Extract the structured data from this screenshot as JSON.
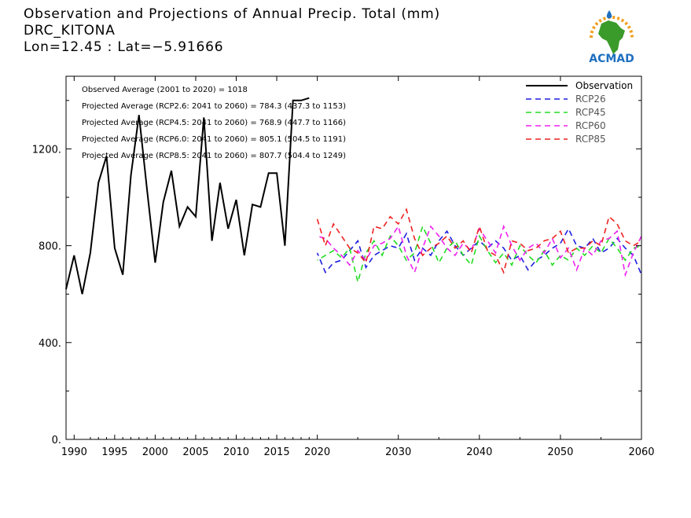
{
  "header": {
    "title": "Observation and Projections of Annual Precip. Total (mm)",
    "station": "DRC_KITONA",
    "coords": "Lon=12.45 : Lat=−5.91666"
  },
  "logo": {
    "text": "ACMAD",
    "colors": {
      "africa": "#3a9a2a",
      "ring": "#f0a020",
      "drop": "#1e6fc0",
      "text": "#1e6fc0"
    }
  },
  "chart_data": {
    "type": "line",
    "title": "Observation and Projections of Annual Precip. Total (mm)",
    "xlabel": "",
    "ylabel": "",
    "xlim": [
      1989,
      2060
    ],
    "ylim": [
      0,
      1500
    ],
    "grid": false,
    "legend_position": "top-right",
    "x_ticks": [
      1990,
      1995,
      2000,
      2005,
      2010,
      2015,
      2020,
      2030,
      2040,
      2050,
      2060
    ],
    "y_ticks": [
      0,
      400,
      800,
      1200
    ],
    "y_tick_labels": [
      "0.",
      "400.",
      "800.",
      "1200."
    ],
    "annotations": [
      "Observed Average (2001 to 2020) = 1018",
      "Projected Average (RCP2.6: 2041 to 2060) = 784.3 (437.3 to 1153)",
      "Projected Average (RCP4.5: 2041 to 2060) = 768.9 (447.7 to 1166)",
      "Projected Average (RCP6.0: 2041 to 2060) = 805.1 (504.5 to 1191)",
      "Projected Average (RCP8.5: 2041 to 2060) = 807.7 (504.4 to 1249)"
    ],
    "series": [
      {
        "name": "Observation",
        "color": "#000000",
        "dashed": false,
        "x": [
          1989,
          1990,
          1991,
          1992,
          1993,
          1994,
          1995,
          1996,
          1997,
          1998,
          1999,
          2000,
          2001,
          2002,
          2003,
          2004,
          2005,
          2006,
          2007,
          2008,
          2009,
          2010,
          2011,
          2012,
          2013,
          2014,
          2015,
          2016,
          2017,
          2018,
          2019
        ],
        "values": [
          620,
          760,
          600,
          770,
          1060,
          1170,
          790,
          680,
          1090,
          1340,
          1030,
          730,
          980,
          1110,
          880,
          960,
          920,
          1330,
          820,
          1060,
          870,
          990,
          760,
          970,
          960,
          1100,
          1100,
          800,
          1400,
          1400,
          1410
        ]
      },
      {
        "name": "RCP26",
        "color": "#1f1fe0",
        "dashed": true,
        "x": [
          2020,
          2021,
          2022,
          2023,
          2024,
          2025,
          2026,
          2027,
          2028,
          2029,
          2030,
          2031,
          2032,
          2033,
          2034,
          2035,
          2036,
          2037,
          2038,
          2039,
          2040,
          2041,
          2042,
          2043,
          2044,
          2045,
          2046,
          2047,
          2048,
          2049,
          2050,
          2051,
          2052,
          2053,
          2054,
          2055,
          2056,
          2057,
          2058,
          2059,
          2060
        ],
        "values": [
          770,
          690,
          730,
          740,
          780,
          820,
          710,
          760,
          780,
          800,
          790,
          850,
          740,
          790,
          760,
          820,
          860,
          800,
          760,
          790,
          820,
          790,
          820,
          790,
          740,
          760,
          700,
          740,
          760,
          790,
          810,
          870,
          800,
          790,
          830,
          770,
          790,
          830,
          790,
          760,
          680
        ]
      },
      {
        "name": "RCP45",
        "color": "#22dd22",
        "dashed": true,
        "x": [
          2020,
          2021,
          2022,
          2023,
          2024,
          2025,
          2026,
          2027,
          2028,
          2029,
          2030,
          2031,
          2032,
          2033,
          2034,
          2035,
          2036,
          2037,
          2038,
          2039,
          2040,
          2041,
          2042,
          2043,
          2044,
          2045,
          2046,
          2047,
          2048,
          2049,
          2050,
          2051,
          2052,
          2053,
          2054,
          2055,
          2056,
          2057,
          2058,
          2059,
          2060
        ],
        "values": [
          740,
          760,
          780,
          750,
          790,
          650,
          770,
          820,
          760,
          840,
          800,
          740,
          770,
          880,
          810,
          730,
          790,
          820,
          760,
          720,
          840,
          780,
          730,
          770,
          720,
          800,
          760,
          730,
          780,
          720,
          760,
          740,
          790,
          760,
          800,
          770,
          830,
          790,
          740,
          790,
          800
        ]
      },
      {
        "name": "RCP60",
        "color": "#ee22ee",
        "dashed": true,
        "x": [
          2020,
          2021,
          2022,
          2023,
          2024,
          2025,
          2026,
          2027,
          2028,
          2029,
          2030,
          2031,
          2032,
          2033,
          2034,
          2035,
          2036,
          2037,
          2038,
          2039,
          2040,
          2041,
          2042,
          2043,
          2044,
          2045,
          2046,
          2047,
          2048,
          2049,
          2050,
          2051,
          2052,
          2053,
          2054,
          2055,
          2056,
          2057,
          2058,
          2059,
          2060
        ],
        "values": [
          840,
          830,
          790,
          760,
          720,
          780,
          740,
          800,
          810,
          830,
          880,
          760,
          690,
          790,
          880,
          840,
          790,
          760,
          810,
          780,
          870,
          820,
          770,
          880,
          800,
          740,
          790,
          810,
          770,
          830,
          750,
          790,
          700,
          790,
          760,
          820,
          830,
          860,
          680,
          770,
          840
        ]
      },
      {
        "name": "RCP85",
        "color": "#ee2222",
        "dashed": true,
        "x": [
          2020,
          2021,
          2022,
          2023,
          2024,
          2025,
          2026,
          2027,
          2028,
          2029,
          2030,
          2031,
          2032,
          2033,
          2034,
          2035,
          2036,
          2037,
          2038,
          2039,
          2040,
          2041,
          2042,
          2043,
          2044,
          2045,
          2046,
          2047,
          2048,
          2049,
          2050,
          2051,
          2052,
          2053,
          2054,
          2055,
          2056,
          2057,
          2058,
          2059,
          2060
        ],
        "values": [
          910,
          800,
          890,
          840,
          790,
          770,
          730,
          880,
          870,
          920,
          890,
          950,
          830,
          760,
          790,
          810,
          840,
          790,
          820,
          770,
          880,
          780,
          760,
          690,
          820,
          810,
          780,
          790,
          820,
          830,
          860,
          770,
          790,
          790,
          820,
          800,
          920,
          890,
          820,
          800,
          820
        ]
      }
    ]
  }
}
